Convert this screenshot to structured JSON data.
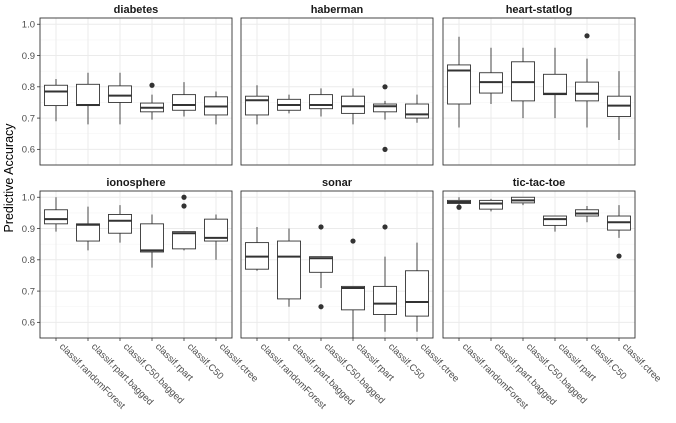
{
  "chart_data": {
    "type": "boxplot",
    "ylabel": "Predictive Accuracy",
    "ylim": [
      0.55,
      1.02
    ],
    "yticks": [
      0.6,
      0.7,
      0.8,
      0.9,
      1.0
    ],
    "ytick_labels": [
      "0.6",
      "0.7",
      "0.8",
      "0.9",
      "1.0"
    ],
    "categories": [
      "classif.randomForest",
      "classif.rpart.bagged",
      "classif.C50.bagged",
      "classif.rpart",
      "classif.C50",
      "classif.ctree"
    ],
    "facet_grid": {
      "rows": 2,
      "cols": 3
    },
    "grid": true,
    "colors": {
      "panel_border": "#333333",
      "grid_major": "#ebebeb",
      "grid_minor": "#f5f5f5",
      "box": "#333333",
      "strip_fill": "#d9d9d9"
    },
    "panels": [
      {
        "name": "diabetes",
        "boxes": [
          {
            "q1": 0.74,
            "median": 0.785,
            "q3": 0.805,
            "whisker_low": 0.69,
            "whisker_high": 0.825,
            "outliers": []
          },
          {
            "q1": 0.74,
            "median": 0.742,
            "q3": 0.808,
            "whisker_low": 0.68,
            "whisker_high": 0.845,
            "outliers": []
          },
          {
            "q1": 0.75,
            "median": 0.772,
            "q3": 0.803,
            "whisker_low": 0.68,
            "whisker_high": 0.845,
            "outliers": []
          },
          {
            "q1": 0.72,
            "median": 0.733,
            "q3": 0.748,
            "whisker_low": 0.695,
            "whisker_high": 0.775,
            "outliers": [
              0.805
            ]
          },
          {
            "q1": 0.725,
            "median": 0.742,
            "q3": 0.775,
            "whisker_low": 0.705,
            "whisker_high": 0.815,
            "outliers": []
          },
          {
            "q1": 0.71,
            "median": 0.737,
            "q3": 0.768,
            "whisker_low": 0.68,
            "whisker_high": 0.785,
            "outliers": []
          }
        ]
      },
      {
        "name": "haberman",
        "boxes": [
          {
            "q1": 0.71,
            "median": 0.757,
            "q3": 0.77,
            "whisker_low": 0.68,
            "whisker_high": 0.805,
            "outliers": []
          },
          {
            "q1": 0.725,
            "median": 0.742,
            "q3": 0.76,
            "whisker_low": 0.715,
            "whisker_high": 0.775,
            "outliers": []
          },
          {
            "q1": 0.73,
            "median": 0.742,
            "q3": 0.775,
            "whisker_low": 0.705,
            "whisker_high": 0.795,
            "outliers": []
          },
          {
            "q1": 0.715,
            "median": 0.738,
            "q3": 0.77,
            "whisker_low": 0.68,
            "whisker_high": 0.795,
            "outliers": []
          },
          {
            "q1": 0.72,
            "median": 0.738,
            "q3": 0.745,
            "whisker_low": 0.695,
            "whisker_high": 0.755,
            "outliers": [
              0.8,
              0.6
            ]
          },
          {
            "q1": 0.7,
            "median": 0.712,
            "q3": 0.745,
            "whisker_low": 0.685,
            "whisker_high": 0.775,
            "outliers": []
          }
        ]
      },
      {
        "name": "heart-statlog",
        "boxes": [
          {
            "q1": 0.745,
            "median": 0.852,
            "q3": 0.87,
            "whisker_low": 0.67,
            "whisker_high": 0.96,
            "outliers": []
          },
          {
            "q1": 0.78,
            "median": 0.815,
            "q3": 0.845,
            "whisker_low": 0.745,
            "whisker_high": 0.925,
            "outliers": []
          },
          {
            "q1": 0.755,
            "median": 0.815,
            "q3": 0.88,
            "whisker_low": 0.7,
            "whisker_high": 0.925,
            "outliers": []
          },
          {
            "q1": 0.775,
            "median": 0.778,
            "q3": 0.84,
            "whisker_low": 0.7,
            "whisker_high": 0.925,
            "outliers": []
          },
          {
            "q1": 0.755,
            "median": 0.778,
            "q3": 0.815,
            "whisker_low": 0.67,
            "whisker_high": 0.89,
            "outliers": [
              0.963
            ]
          },
          {
            "q1": 0.705,
            "median": 0.74,
            "q3": 0.77,
            "whisker_low": 0.63,
            "whisker_high": 0.85,
            "outliers": []
          }
        ]
      },
      {
        "name": "ionosphere",
        "boxes": [
          {
            "q1": 0.915,
            "median": 0.93,
            "q3": 0.96,
            "whisker_low": 0.89,
            "whisker_high": 1.0,
            "outliers": []
          },
          {
            "q1": 0.86,
            "median": 0.912,
            "q3": 0.915,
            "whisker_low": 0.83,
            "whisker_high": 0.97,
            "outliers": []
          },
          {
            "q1": 0.885,
            "median": 0.925,
            "q3": 0.945,
            "whisker_low": 0.855,
            "whisker_high": 0.975,
            "outliers": []
          },
          {
            "q1": 0.825,
            "median": 0.83,
            "q3": 0.915,
            "whisker_low": 0.775,
            "whisker_high": 0.945,
            "outliers": []
          },
          {
            "q1": 0.835,
            "median": 0.885,
            "q3": 0.89,
            "whisker_low": 0.83,
            "whisker_high": 0.89,
            "outliers": [
              1.0,
              0.972
            ]
          },
          {
            "q1": 0.86,
            "median": 0.87,
            "q3": 0.93,
            "whisker_low": 0.8,
            "whisker_high": 0.945,
            "outliers": []
          }
        ]
      },
      {
        "name": "sonar",
        "boxes": [
          {
            "q1": 0.77,
            "median": 0.81,
            "q3": 0.855,
            "whisker_low": 0.765,
            "whisker_high": 0.905,
            "outliers": []
          },
          {
            "q1": 0.675,
            "median": 0.81,
            "q3": 0.86,
            "whisker_low": 0.65,
            "whisker_high": 0.9,
            "outliers": []
          },
          {
            "q1": 0.76,
            "median": 0.805,
            "q3": 0.81,
            "whisker_low": 0.71,
            "whisker_high": 0.81,
            "outliers": [
              0.905,
              0.65
            ]
          },
          {
            "q1": 0.64,
            "median": 0.71,
            "q3": 0.715,
            "whisker_low": 0.55,
            "whisker_high": 0.715,
            "outliers": [
              0.86
            ]
          },
          {
            "q1": 0.625,
            "median": 0.66,
            "q3": 0.715,
            "whisker_low": 0.57,
            "whisker_high": 0.81,
            "outliers": [
              0.905
            ]
          },
          {
            "q1": 0.62,
            "median": 0.665,
            "q3": 0.765,
            "whisker_low": 0.57,
            "whisker_high": 0.855,
            "outliers": []
          }
        ]
      },
      {
        "name": "tic-tac-toe",
        "boxes": [
          {
            "q1": 0.98,
            "median": 0.985,
            "q3": 0.99,
            "whisker_low": 0.975,
            "whisker_high": 1.0,
            "outliers": [
              0.968
            ]
          },
          {
            "q1": 0.962,
            "median": 0.98,
            "q3": 0.99,
            "whisker_low": 0.955,
            "whisker_high": 0.995,
            "outliers": []
          },
          {
            "q1": 0.982,
            "median": 0.99,
            "q3": 1.0,
            "whisker_low": 0.975,
            "whisker_high": 1.0,
            "outliers": []
          },
          {
            "q1": 0.91,
            "median": 0.93,
            "q3": 0.94,
            "whisker_low": 0.89,
            "whisker_high": 0.94,
            "outliers": []
          },
          {
            "q1": 0.94,
            "median": 0.948,
            "q3": 0.96,
            "whisker_low": 0.92,
            "whisker_high": 0.972,
            "outliers": []
          },
          {
            "q1": 0.895,
            "median": 0.92,
            "q3": 0.94,
            "whisker_low": 0.87,
            "whisker_high": 0.975,
            "outliers": [
              0.812
            ]
          }
        ]
      }
    ]
  }
}
